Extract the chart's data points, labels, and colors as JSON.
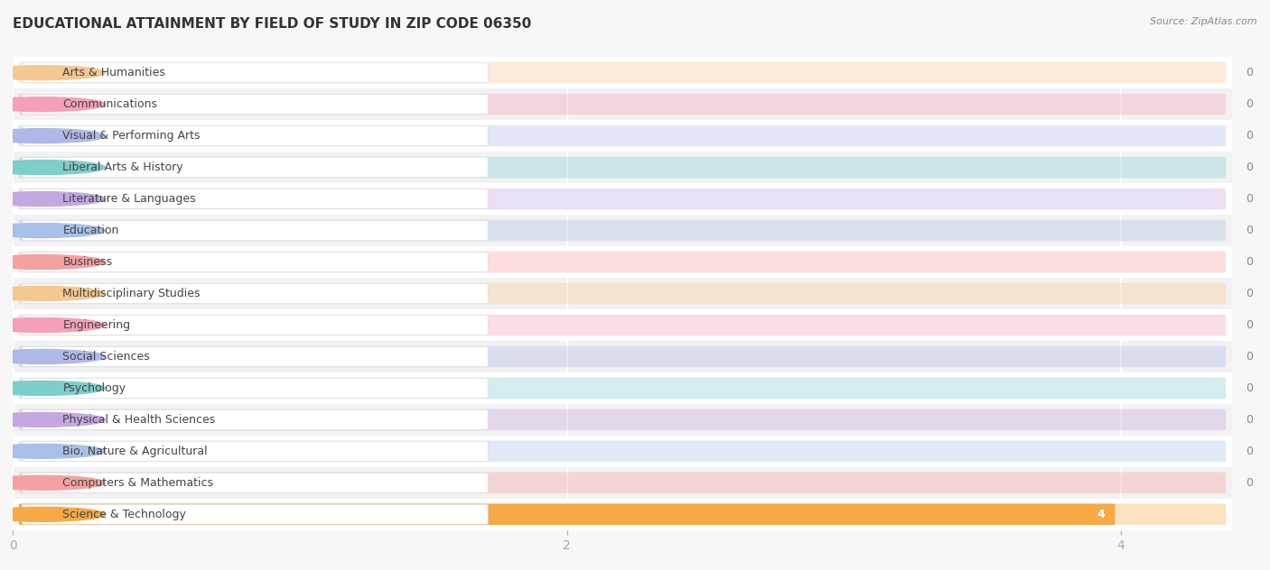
{
  "title": "EDUCATIONAL ATTAINMENT BY FIELD OF STUDY IN ZIP CODE 06350",
  "source": "Source: ZipAtlas.com",
  "categories": [
    "Science & Technology",
    "Computers & Mathematics",
    "Bio, Nature & Agricultural",
    "Physical & Health Sciences",
    "Psychology",
    "Social Sciences",
    "Engineering",
    "Multidisciplinary Studies",
    "Business",
    "Education",
    "Literature & Languages",
    "Liberal Arts & History",
    "Visual & Performing Arts",
    "Communications",
    "Arts & Humanities"
  ],
  "values": [
    4,
    0,
    0,
    0,
    0,
    0,
    0,
    0,
    0,
    0,
    0,
    0,
    0,
    0,
    0
  ],
  "bar_colors": [
    "#F5A947",
    "#F5A0A0",
    "#A8C0E8",
    "#C4A8E0",
    "#7ECECA",
    "#B0B8E8",
    "#F5A0B8",
    "#F5C890",
    "#F5A0A0",
    "#A8C0E8",
    "#C4A8E0",
    "#7ECECA",
    "#B0B8E8",
    "#F5A0B8",
    "#F5C890"
  ],
  "xlim": [
    0,
    4.4
  ],
  "xticks": [
    0,
    2,
    4
  ],
  "background_color": "#f7f7f7",
  "bar_background_color": "#e8e8e8",
  "title_fontsize": 11,
  "label_fontsize": 9,
  "value_fontsize": 9,
  "row_colors": [
    "#ffffff",
    "#f2f2f2"
  ]
}
